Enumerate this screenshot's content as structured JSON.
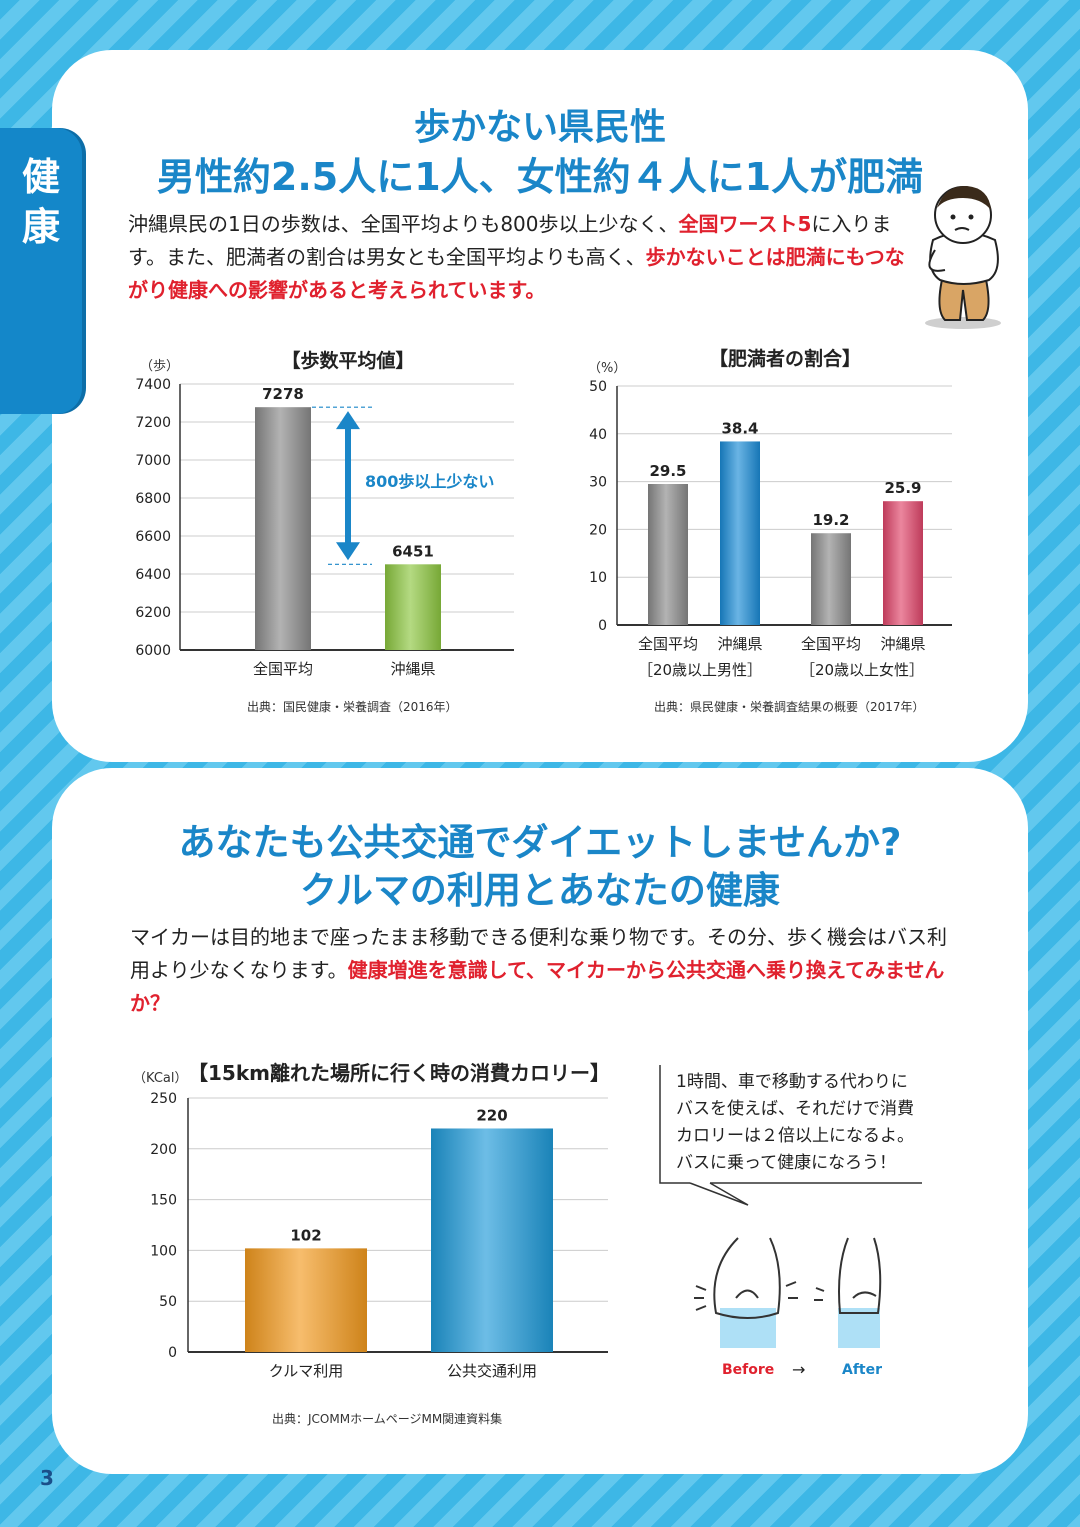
{
  "side_tab": {
    "chars": [
      "健",
      "康"
    ]
  },
  "section1": {
    "title_line1": "歩かない県民性",
    "title_line2": "男性約2.5人に1人、女性約４人に1人が肥満",
    "paragraph": {
      "part1": "沖縄県民の1日の歩数は、全国平均よりも800歩以上少なく、",
      "red1": "全国ワースト5",
      "part2": "に入ります。また、肥満者の割合は男女とも全国平均よりも高く、",
      "red2": "歩かないことは肥満にもつながり健康への影響があると考えられています。"
    }
  },
  "section2": {
    "title_line1": "あなたも公共交通でダイエットしませんか?",
    "title_line2": "クルマの利用とあなたの健康",
    "paragraph": {
      "part1": "マイカーは目的地まで座ったまま移動できる便利な乗り物です。その分、歩く機会はバス利用より少なくなります。",
      "red1": "健康増進を意識して、マイカーから公共交通へ乗り換えてみませんか？"
    },
    "bubble_lines": [
      "1時間、車で移動する代わりに",
      "バスを使えば、それだけで消費",
      "カロリーは２倍以上になるよ。",
      "バスに乗って健康になろう！"
    ],
    "before_label": "Before",
    "after_label": "After",
    "arrow": "→"
  },
  "page_number": "3",
  "chart_data": [
    {
      "type": "bar",
      "title": "【歩数平均値】",
      "ylabel": "（歩）",
      "categories": [
        "全国平均",
        "沖縄県"
      ],
      "values": [
        7278,
        6451
      ],
      "ylim": [
        6000,
        7400
      ],
      "yticks": [
        "7400",
        "7200",
        "7000",
        "6800",
        "6600",
        "6400",
        "6200",
        "6000"
      ],
      "annotation": "800歩以上少ない",
      "source": "出典：国民健康・栄養調査（2016年）",
      "colors": [
        "#8a8a8a",
        "#8cc63f"
      ]
    },
    {
      "type": "bar",
      "title": "【肥満者の割合】",
      "ylabel": "（%）",
      "groups": [
        "［20歳以上男性］",
        "［20歳以上女性］"
      ],
      "categories": [
        "全国平均",
        "沖縄県",
        "全国平均",
        "沖縄県"
      ],
      "values": [
        29.5,
        38.4,
        19.2,
        25.9
      ],
      "ylim": [
        0,
        50
      ],
      "yticks": [
        "50",
        "40",
        "30",
        "20",
        "10",
        "0"
      ],
      "source": "出典：県民健康・栄養調査結果の概要（2017年）",
      "colors": [
        "#8a8a8a",
        "#1a8bd6",
        "#8a8a8a",
        "#e0456a"
      ]
    },
    {
      "type": "bar",
      "title": "【15km離れた場所に行く時の消費カロリー】",
      "ylabel": "（KCal）",
      "categories": [
        "クルマ利用",
        "公共交通利用"
      ],
      "values": [
        102,
        220
      ],
      "ylim": [
        0,
        250
      ],
      "yticks": [
        "250",
        "200",
        "150",
        "100",
        "50",
        "0"
      ],
      "source": "出典：JCOMMホームページMM関連資料集",
      "colors": [
        "#f29a1f",
        "#1f9ad8"
      ]
    }
  ]
}
